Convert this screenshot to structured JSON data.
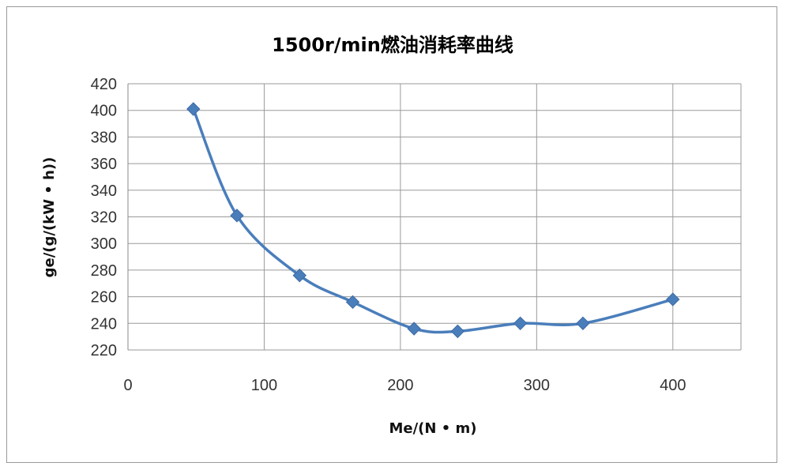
{
  "chart_data": {
    "type": "scatter",
    "title": "1500r/min燃油消耗率曲线",
    "xlabel": "Me/(N • m)",
    "ylabel": "ge/(g/(kW • h))",
    "xlim": [
      0,
      450
    ],
    "ylim": [
      220,
      420
    ],
    "xticks": [
      0,
      100,
      200,
      300,
      400
    ],
    "yticks": [
      220,
      240,
      260,
      280,
      300,
      320,
      340,
      360,
      380,
      400,
      420
    ],
    "grid": true,
    "smooth": true,
    "marker": "diamond",
    "color": "#4a7ebb",
    "series": [
      {
        "x": [
          48,
          80,
          126,
          165,
          210,
          242,
          288,
          334,
          400
        ],
        "y": [
          401,
          321,
          276,
          256,
          236,
          234,
          240,
          240,
          258
        ]
      }
    ]
  }
}
